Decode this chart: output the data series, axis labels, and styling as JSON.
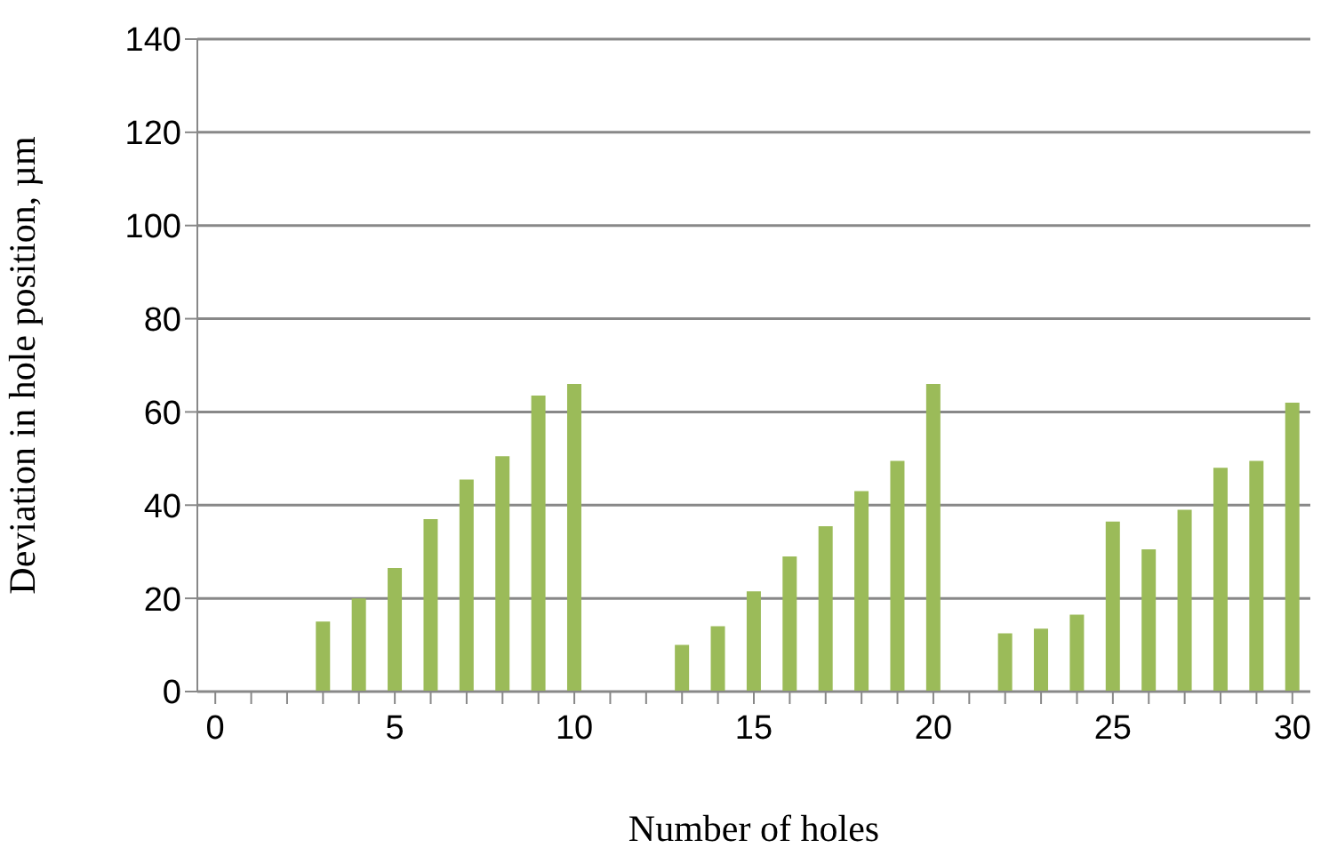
{
  "chart_data": {
    "type": "bar",
    "xlabel": "Number of holes",
    "ylabel": "Deviation in hole position, µm",
    "categories": [
      "0",
      null,
      null,
      null,
      null,
      "5",
      null,
      null,
      null,
      null,
      "10",
      null,
      null,
      null,
      null,
      "15",
      null,
      null,
      null,
      null,
      "20",
      null,
      null,
      null,
      null,
      "25",
      null,
      null,
      null,
      null,
      "30"
    ],
    "values": [
      null,
      null,
      null,
      15,
      20,
      26.5,
      37,
      45.5,
      50.5,
      63.5,
      66,
      null,
      null,
      10,
      14,
      21.5,
      29,
      35.5,
      43,
      49.5,
      66,
      null,
      12.5,
      13.5,
      16.5,
      36.5,
      30.5,
      39,
      48,
      49.5,
      62
    ],
    "color": "#9bbb59",
    "ylim": [
      0,
      140
    ],
    "yticks": [
      0,
      20,
      40,
      60,
      80,
      100,
      120,
      140
    ],
    "grid": "y"
  }
}
